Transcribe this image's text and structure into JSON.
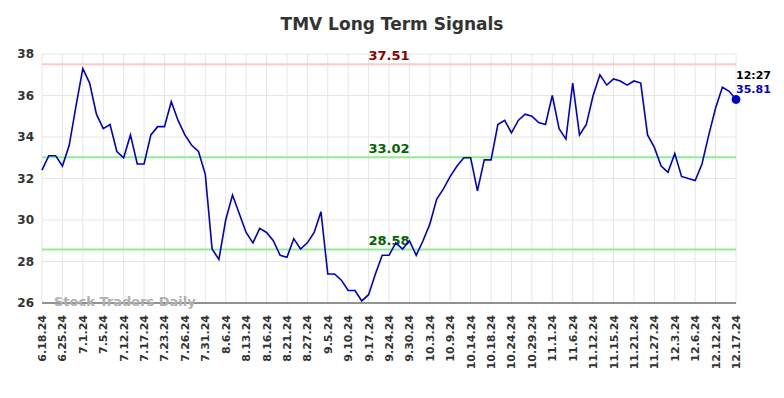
{
  "chart_data": {
    "type": "line",
    "title": "TMV Long Term Signals",
    "watermark": "Stock Traders Daily",
    "categories": [
      "6.18.24",
      null,
      null,
      "6.25.24",
      null,
      null,
      "7.1.24",
      null,
      null,
      "7.5.24",
      null,
      null,
      "7.12.24",
      null,
      null,
      "7.17.24",
      null,
      null,
      "7.23.24",
      null,
      null,
      "7.26.24",
      null,
      null,
      "7.31.24",
      null,
      null,
      "8.6.24",
      null,
      null,
      "8.13.24",
      null,
      null,
      "8.16.24",
      null,
      null,
      "8.21.24",
      null,
      null,
      "8.27.24",
      null,
      null,
      "9.5.24",
      null,
      null,
      "9.10.24",
      null,
      null,
      "9.17.24",
      null,
      null,
      "9.24.24",
      null,
      null,
      "9.30.24",
      null,
      null,
      "10.3.24",
      null,
      null,
      "10.9.24",
      null,
      null,
      "10.14.24",
      null,
      null,
      "10.18.24",
      null,
      null,
      "10.24.24",
      null,
      null,
      "10.29.24",
      null,
      null,
      "11.1.24",
      null,
      null,
      "11.6.24",
      null,
      null,
      "11.12.24",
      null,
      null,
      "11.15.24",
      null,
      null,
      "11.21.24",
      null,
      null,
      "11.27.24",
      null,
      null,
      "12.3.24",
      null,
      null,
      "12.6.24",
      null,
      null,
      "12.12.24",
      null,
      null,
      "12.17.24"
    ],
    "values": [
      32.4,
      33.1,
      33.1,
      32.6,
      33.6,
      35.5,
      37.3,
      36.6,
      35.1,
      34.4,
      34.6,
      33.3,
      33.0,
      34.1,
      32.7,
      32.7,
      34.1,
      34.5,
      34.5,
      35.7,
      34.8,
      34.1,
      33.6,
      33.3,
      32.2,
      28.6,
      28.1,
      30.0,
      31.2,
      30.3,
      29.4,
      28.9,
      29.6,
      29.4,
      29.0,
      28.3,
      28.2,
      29.1,
      28.6,
      28.9,
      29.4,
      30.4,
      27.4,
      27.4,
      27.1,
      26.6,
      26.6,
      26.1,
      26.4,
      27.4,
      28.3,
      28.3,
      28.9,
      28.6,
      29.0,
      28.3,
      29.0,
      29.8,
      31.0,
      31.5,
      32.1,
      32.6,
      33.0,
      33.0,
      31.4,
      32.9,
      32.9,
      34.6,
      34.8,
      34.2,
      34.8,
      35.1,
      35.0,
      34.7,
      34.6,
      36.0,
      34.4,
      33.9,
      36.6,
      34.1,
      34.6,
      36.0,
      37.0,
      36.5,
      36.8,
      36.7,
      36.5,
      36.7,
      36.6,
      34.1,
      33.5,
      32.6,
      32.3,
      33.2,
      32.1,
      32.0,
      31.9,
      32.7,
      34.1,
      35.4,
      36.4,
      36.2,
      35.81
    ],
    "color": "#0000cc",
    "ylim": [
      26,
      38
    ],
    "yticks": [
      26,
      28,
      30,
      32,
      34,
      36,
      38
    ],
    "grid": true,
    "reference_lines": [
      {
        "value": 37.51,
        "label": "37.51",
        "color": "#ffc8c8",
        "label_color": "#8b0000"
      },
      {
        "value": 33.02,
        "label": "33.02",
        "color": "#90ee90",
        "label_color": "#006400"
      },
      {
        "value": 28.58,
        "label": "28.58",
        "color": "#90ee90",
        "label_color": "#006400"
      }
    ],
    "last_point": {
      "time": "12:27",
      "value": 35.81,
      "label": "35.81"
    }
  }
}
